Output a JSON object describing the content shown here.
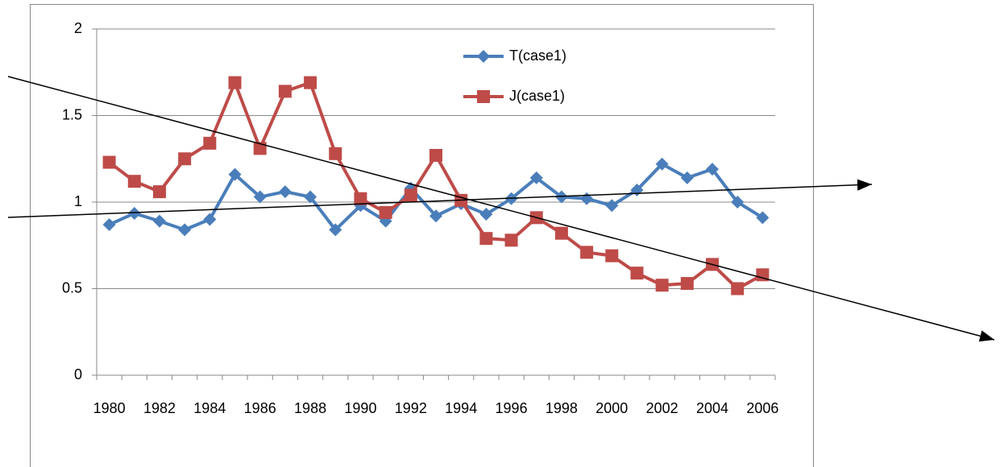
{
  "chart_data": {
    "type": "line",
    "categories": [
      "1980",
      null,
      "1982",
      null,
      "1984",
      null,
      "1986",
      null,
      "1988",
      null,
      "1990",
      null,
      "1992",
      null,
      "1994",
      null,
      "1996",
      null,
      "1998",
      null,
      "2000",
      null,
      "2002",
      null,
      "2004",
      null,
      "2006"
    ],
    "series": [
      {
        "name": "T(case1)",
        "color": "#4a7ebb",
        "marker": "diamond",
        "values": [
          0.87,
          0.935,
          0.89,
          0.84,
          0.9,
          1.16,
          1.03,
          1.06,
          1.03,
          0.84,
          0.98,
          0.89,
          1.08,
          0.92,
          0.99,
          0.93,
          1.02,
          1.14,
          1.03,
          1.02,
          0.98,
          1.07,
          1.22,
          1.14,
          1.19,
          1.0,
          0.91
        ]
      },
      {
        "name": "J(case1)",
        "color": "#be4b48",
        "marker": "square",
        "values": [
          1.23,
          1.12,
          1.06,
          1.25,
          1.34,
          1.69,
          1.31,
          1.64,
          1.69,
          1.28,
          1.02,
          0.94,
          1.04,
          1.27,
          1.01,
          0.79,
          0.78,
          0.91,
          0.82,
          0.71,
          0.69,
          0.59,
          0.52,
          0.53,
          0.64,
          0.5,
          0.58
        ]
      }
    ],
    "ylim": [
      0,
      2
    ],
    "yticks": [
      0,
      0.5,
      1,
      1.5,
      2
    ],
    "grid": true
  }
}
